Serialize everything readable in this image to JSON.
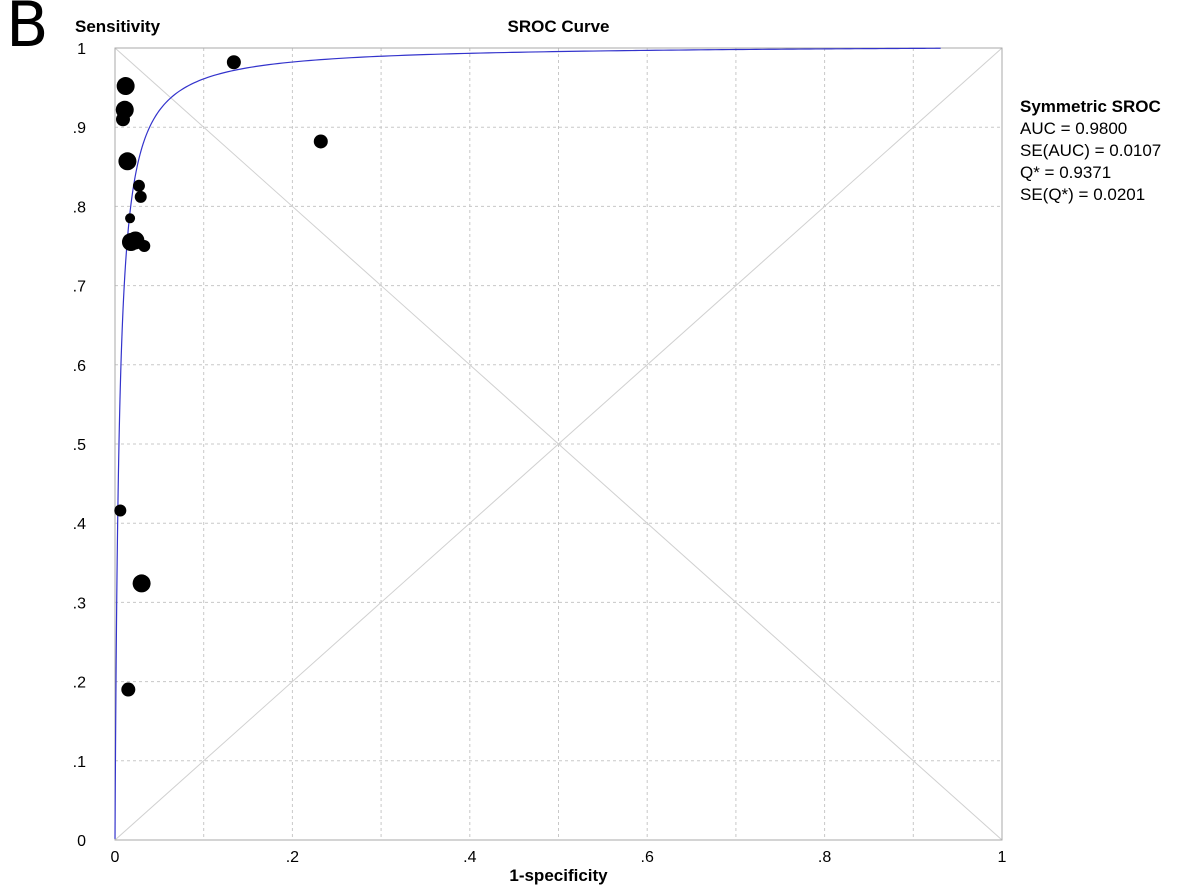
{
  "panel_label": "B",
  "legend": {
    "title": "Symmetric SROC",
    "lines": [
      "AUC = 0.9800",
      "SE(AUC) = 0.0107",
      "Q* = 0.9371",
      "SE(Q*) = 0.0201"
    ]
  },
  "chart_data": {
    "type": "scatter",
    "title": "SROC Curve",
    "xlabel": "1-specificity",
    "ylabel": "Sensitivity",
    "xlim": [
      0,
      1
    ],
    "ylim": [
      0,
      1
    ],
    "x_ticks": [
      "0",
      ".2",
      ".4",
      ".6",
      ".8",
      "1"
    ],
    "y_ticks": [
      "0",
      ".1",
      ".2",
      ".3",
      ".4",
      ".5",
      ".6",
      ".7",
      ".8",
      ".9",
      "1"
    ],
    "grid": true,
    "points": [
      {
        "x": 0.134,
        "y": 0.982,
        "size": "medium"
      },
      {
        "x": 0.012,
        "y": 0.952,
        "size": "large"
      },
      {
        "x": 0.011,
        "y": 0.922,
        "size": "large"
      },
      {
        "x": 0.009,
        "y": 0.91,
        "size": "medium"
      },
      {
        "x": 0.232,
        "y": 0.882,
        "size": "medium"
      },
      {
        "x": 0.014,
        "y": 0.857,
        "size": "large"
      },
      {
        "x": 0.027,
        "y": 0.826,
        "size": "small"
      },
      {
        "x": 0.029,
        "y": 0.812,
        "size": "small"
      },
      {
        "x": 0.017,
        "y": 0.785,
        "size": "tiny"
      },
      {
        "x": 0.018,
        "y": 0.755,
        "size": "large"
      },
      {
        "x": 0.023,
        "y": 0.757,
        "size": "large"
      },
      {
        "x": 0.033,
        "y": 0.75,
        "size": "small"
      },
      {
        "x": 0.006,
        "y": 0.416,
        "size": "small"
      },
      {
        "x": 0.03,
        "y": 0.324,
        "size": "large"
      },
      {
        "x": 0.015,
        "y": 0.19,
        "size": "medium"
      }
    ],
    "curve": {
      "name": "Symmetric SROC",
      "color": "#3333cc",
      "auc": 0.98
    },
    "diagonals": true
  }
}
